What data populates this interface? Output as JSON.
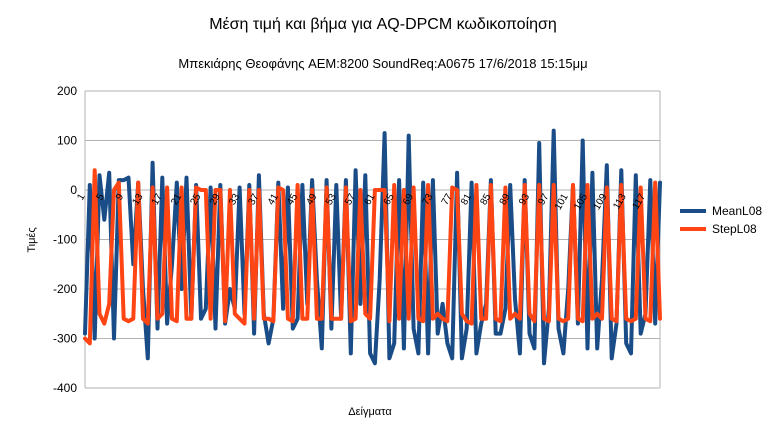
{
  "chart_data": {
    "type": "line",
    "title": "Μέση τιμή και βήμα για AQ-DPCM κωδικοποίηση",
    "subtitle": "Μπεκιάρης Θεοφάνης AEM:8200 SoundReq:A0675 17/6/2018 15:15μμ",
    "xlabel": "Δείγματα",
    "ylabel": "Τιμές",
    "ylim": [
      -400,
      200
    ],
    "yticks": [
      200,
      100,
      0,
      -100,
      -200,
      -300,
      -400
    ],
    "xlim": [
      1,
      120
    ],
    "xtick_labels": [
      "1",
      "5",
      "9",
      "13",
      "17",
      "21",
      "25",
      "29",
      "33",
      "37",
      "41",
      "45",
      "49",
      "53",
      "57",
      "61",
      "65",
      "69",
      "73",
      "77",
      "81",
      "85",
      "89",
      "93",
      "97",
      "101",
      "105",
      "109",
      "113",
      "117"
    ],
    "grid": "horizontal",
    "legend_position": "right",
    "colors": {
      "MeanL08": "#1a4d87",
      "StepL08": "#ff4514"
    },
    "series": [
      {
        "name": "MeanL08",
        "color": "#1a4d87",
        "values": [
          -290,
          10,
          -300,
          30,
          -60,
          35,
          -300,
          20,
          20,
          25,
          -150,
          15,
          -200,
          -340,
          55,
          -280,
          25,
          -270,
          -150,
          15,
          -200,
          25,
          -260,
          10,
          -260,
          -240,
          5,
          -280,
          10,
          -270,
          -200,
          -240,
          5,
          -250,
          10,
          -290,
          30,
          -250,
          -310,
          -260,
          15,
          -240,
          5,
          -280,
          -260,
          10,
          -230,
          20,
          -180,
          -320,
          20,
          -280,
          10,
          -260,
          20,
          -330,
          40,
          -230,
          30,
          -330,
          -350,
          -180,
          115,
          -340,
          -310,
          20,
          -320,
          110,
          -280,
          -330,
          15,
          -330,
          20,
          -290,
          -230,
          -310,
          -340,
          35,
          -340,
          -280,
          15,
          -330,
          -270,
          -230,
          20,
          -290,
          -290,
          -240,
          10,
          -220,
          -330,
          20,
          -290,
          -320,
          95,
          -350,
          -240,
          120,
          -280,
          -330,
          -200,
          10,
          -270,
          100,
          -320,
          35,
          -320,
          -180,
          50,
          -340,
          -270,
          40,
          -310,
          -330,
          30,
          -290,
          -250,
          20,
          -270,
          15
        ]
      },
      {
        "name": "StepL08",
        "color": "#ff4514",
        "values": [
          -300,
          -310,
          40,
          -250,
          -270,
          -230,
          0,
          15,
          -260,
          -265,
          -260,
          15,
          -260,
          -270,
          5,
          -260,
          -250,
          5,
          -260,
          -265,
          5,
          -260,
          -260,
          5,
          0,
          0,
          -260,
          0,
          0,
          -265,
          0,
          -250,
          -260,
          -270,
          0,
          -260,
          0,
          -260,
          -260,
          -265,
          5,
          0,
          -260,
          -265,
          10,
          -260,
          -260,
          0,
          -260,
          -260,
          5,
          -260,
          -260,
          -260,
          5,
          -265,
          -260,
          0,
          -250,
          -260,
          0,
          0,
          0,
          -265,
          10,
          -260,
          0,
          -260,
          5,
          -260,
          -265,
          10,
          -260,
          -250,
          -260,
          -265,
          5,
          0,
          -250,
          -265,
          -270,
          10,
          -260,
          -260,
          10,
          -260,
          -265,
          5,
          -260,
          -250,
          -260,
          10,
          -250,
          -265,
          10,
          -260,
          -265,
          10,
          -260,
          -265,
          -260,
          10,
          -260,
          -265,
          10,
          -260,
          -250,
          -260,
          5,
          -260,
          -265,
          10,
          -260,
          -265,
          -260,
          5,
          -260,
          -265,
          15,
          -260
        ]
      }
    ]
  }
}
